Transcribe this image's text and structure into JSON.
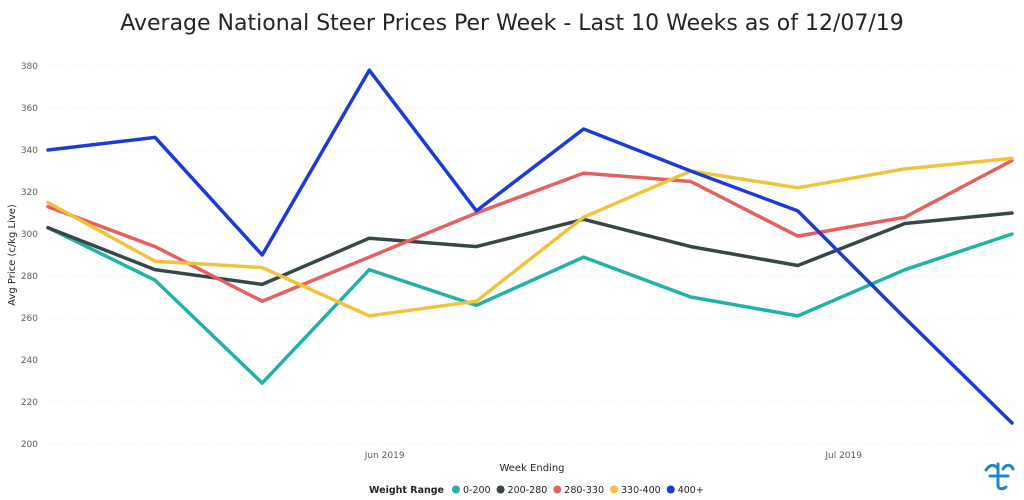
{
  "chart_data": {
    "type": "line",
    "title": "Average National Steer Prices Per Week - Last 10 Weeks as of 12/07/19",
    "xlabel": "Week Ending",
    "ylabel": "Avg Price (c/kg Live)",
    "ylim": [
      200,
      380
    ],
    "yticks": [
      200,
      220,
      240,
      260,
      280,
      300,
      320,
      340,
      360,
      380
    ],
    "grid": true,
    "x": [
      "2019-05-10",
      "2019-05-17",
      "2019-05-24",
      "2019-05-31",
      "2019-06-07",
      "2019-06-14",
      "2019-06-21",
      "2019-06-28",
      "2019-07-05",
      "2019-07-12"
    ],
    "xticks": [
      {
        "label": "Jun 2019",
        "date": "2019-06-01"
      },
      {
        "label": "Jul 2019",
        "date": "2019-07-01"
      }
    ],
    "legend": {
      "title": "Weight Range",
      "placement": "bottom"
    },
    "series": [
      {
        "name": "0-200",
        "color": "#20b2a4",
        "values": [
          303,
          278,
          229,
          283,
          266,
          289,
          270,
          261,
          283,
          300
        ]
      },
      {
        "name": "200-280",
        "color": "#374649",
        "values": [
          303,
          283,
          276,
          298,
          294,
          307,
          294,
          285,
          305,
          310
        ]
      },
      {
        "name": "280-330",
        "color": "#e66060",
        "values": [
          313,
          294,
          268,
          289,
          310,
          329,
          325,
          299,
          308,
          335
        ]
      },
      {
        "name": "330-400",
        "color": "#f0c33c",
        "values": [
          315,
          287,
          284,
          261,
          268,
          308,
          330,
          322,
          331,
          336
        ]
      },
      {
        "name": "400+",
        "color": "#1c3bd6",
        "values": [
          340,
          346,
          290,
          378,
          311,
          350,
          330,
          311,
          260,
          210
        ]
      }
    ]
  },
  "logo": {
    "name": "brand-logo-icon",
    "color": "#1e88c8"
  }
}
